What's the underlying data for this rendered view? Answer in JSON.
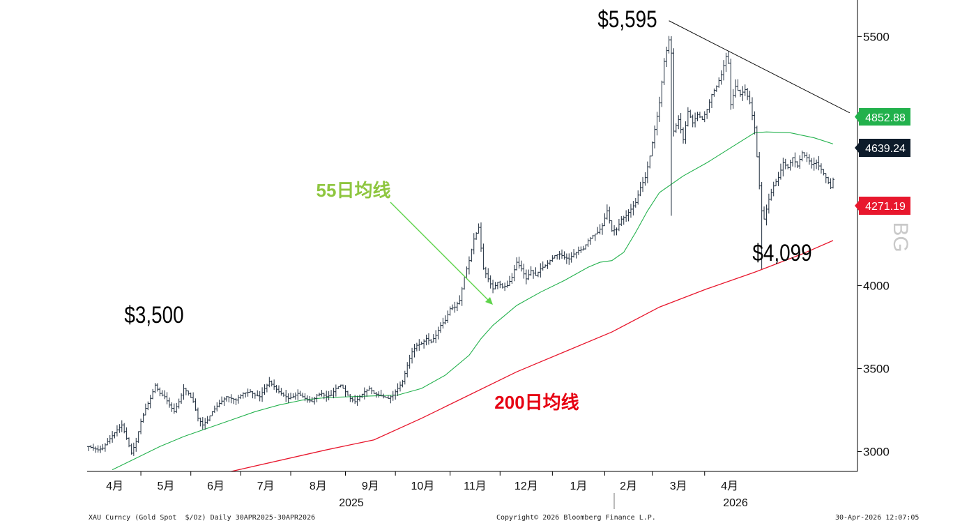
{
  "chart_data": {
    "type": "ohlc",
    "instrument": "XAU Curncy (Gold Spot  $/Oz) Daily 30APR2025-30APR2026",
    "copyright": "Copyright© 2026 Bloomberg Finance L.P.",
    "timestamp": "30-Apr-2026 12:07:05",
    "x_ticks": [
      "4月",
      "5月",
      "6月",
      "7月",
      "8月",
      "9月",
      "10月",
      "11月",
      "12月",
      "1月",
      "2月",
      "3月",
      "4月"
    ],
    "years": [
      "2025",
      "2026"
    ],
    "y_ticks": [
      "5500",
      "5000",
      "4500",
      "4000",
      "3500",
      "3000"
    ],
    "ylim": [
      2880,
      5720
    ],
    "price_path": [
      [
        0,
        3030
      ],
      [
        4,
        3010
      ],
      [
        6,
        3020
      ],
      [
        8,
        3060
      ],
      [
        12,
        3130
      ],
      [
        14,
        3160
      ],
      [
        16,
        3080
      ],
      [
        18,
        2990
      ],
      [
        20,
        3060
      ],
      [
        22,
        3180
      ],
      [
        24,
        3260
      ],
      [
        26,
        3320
      ],
      [
        28,
        3400
      ],
      [
        30,
        3350
      ],
      [
        32,
        3330
      ],
      [
        34,
        3280
      ],
      [
        36,
        3240
      ],
      [
        38,
        3300
      ],
      [
        40,
        3380
      ],
      [
        42,
        3350
      ],
      [
        44,
        3300
      ],
      [
        46,
        3200
      ],
      [
        48,
        3160
      ],
      [
        50,
        3190
      ],
      [
        52,
        3240
      ],
      [
        55,
        3290
      ],
      [
        58,
        3330
      ],
      [
        62,
        3310
      ],
      [
        65,
        3350
      ],
      [
        68,
        3360
      ],
      [
        70,
        3340
      ],
      [
        72,
        3330
      ],
      [
        74,
        3380
      ],
      [
        76,
        3420
      ],
      [
        78,
        3390
      ],
      [
        80,
        3360
      ],
      [
        82,
        3340
      ],
      [
        84,
        3320
      ],
      [
        86,
        3330
      ],
      [
        88,
        3350
      ],
      [
        90,
        3330
      ],
      [
        92,
        3310
      ],
      [
        94,
        3300
      ],
      [
        96,
        3340
      ],
      [
        98,
        3350
      ],
      [
        100,
        3330
      ],
      [
        102,
        3340
      ],
      [
        104,
        3380
      ],
      [
        106,
        3400
      ],
      [
        108,
        3360
      ],
      [
        110,
        3320
      ],
      [
        112,
        3300
      ],
      [
        114,
        3330
      ],
      [
        116,
        3360
      ],
      [
        118,
        3380
      ],
      [
        120,
        3350
      ],
      [
        122,
        3340
      ],
      [
        124,
        3330
      ],
      [
        126,
        3320
      ],
      [
        128,
        3340
      ],
      [
        130,
        3380
      ],
      [
        132,
        3420
      ],
      [
        134,
        3520
      ],
      [
        136,
        3600
      ],
      [
        138,
        3640
      ],
      [
        140,
        3650
      ],
      [
        142,
        3680
      ],
      [
        144,
        3660
      ],
      [
        146,
        3700
      ],
      [
        148,
        3760
      ],
      [
        150,
        3790
      ],
      [
        152,
        3860
      ],
      [
        154,
        3870
      ],
      [
        156,
        3910
      ],
      [
        158,
        4050
      ],
      [
        160,
        4150
      ],
      [
        162,
        4280
      ],
      [
        164,
        4350
      ],
      [
        166,
        4100
      ],
      [
        168,
        4040
      ],
      [
        170,
        3980
      ],
      [
        172,
        4020
      ],
      [
        174,
        3990
      ],
      [
        176,
        4000
      ],
      [
        178,
        4050
      ],
      [
        180,
        4140
      ],
      [
        182,
        4100
      ],
      [
        184,
        4040
      ],
      [
        186,
        4090
      ],
      [
        188,
        4060
      ],
      [
        190,
        4100
      ],
      [
        192,
        4120
      ],
      [
        194,
        4150
      ],
      [
        196,
        4180
      ],
      [
        198,
        4190
      ],
      [
        200,
        4170
      ],
      [
        202,
        4160
      ],
      [
        204,
        4190
      ],
      [
        206,
        4210
      ],
      [
        208,
        4220
      ],
      [
        210,
        4270
      ],
      [
        212,
        4300
      ],
      [
        214,
        4320
      ],
      [
        216,
        4360
      ],
      [
        218,
        4450
      ],
      [
        220,
        4330
      ],
      [
        222,
        4340
      ],
      [
        224,
        4400
      ],
      [
        226,
        4420
      ],
      [
        228,
        4460
      ],
      [
        230,
        4500
      ],
      [
        232,
        4590
      ],
      [
        234,
        4650
      ],
      [
        236,
        4780
      ],
      [
        238,
        4940
      ],
      [
        240,
        5100
      ],
      [
        242,
        5350
      ],
      [
        244,
        5480
      ],
      [
        245,
        5400
      ],
      [
        246,
        4930
      ],
      [
        248,
        5000
      ],
      [
        250,
        4880
      ],
      [
        252,
        5050
      ],
      [
        254,
        4980
      ],
      [
        256,
        5030
      ],
      [
        258,
        5000
      ],
      [
        260,
        5060
      ],
      [
        262,
        5150
      ],
      [
        264,
        5200
      ],
      [
        266,
        5270
      ],
      [
        268,
        5380
      ],
      [
        269,
        5340
      ],
      [
        270,
        5090
      ],
      [
        272,
        5200
      ],
      [
        274,
        5150
      ],
      [
        276,
        5180
      ],
      [
        278,
        5100
      ],
      [
        280,
        4950
      ],
      [
        282,
        4600
      ],
      [
        283,
        4450
      ],
      [
        284,
        4400
      ],
      [
        286,
        4520
      ],
      [
        288,
        4600
      ],
      [
        290,
        4650
      ],
      [
        292,
        4740
      ],
      [
        294,
        4710
      ],
      [
        296,
        4770
      ],
      [
        298,
        4720
      ],
      [
        300,
        4800
      ],
      [
        302,
        4770
      ],
      [
        304,
        4730
      ],
      [
        306,
        4740
      ],
      [
        308,
        4700
      ],
      [
        310,
        4650
      ],
      [
        312,
        4590
      ],
      [
        313,
        4639
      ]
    ],
    "lows": [
      [
        245,
        4420
      ],
      [
        283,
        4099
      ]
    ],
    "ma_series": [
      {
        "name": "55日均线",
        "last": 4852.88,
        "color": "#22b14c",
        "values": [
          [
            10,
            2890
          ],
          [
            20,
            2960
          ],
          [
            30,
            3030
          ],
          [
            40,
            3090
          ],
          [
            50,
            3140
          ],
          [
            60,
            3190
          ],
          [
            70,
            3240
          ],
          [
            80,
            3280
          ],
          [
            90,
            3310
          ],
          [
            100,
            3325
          ],
          [
            110,
            3330
          ],
          [
            120,
            3335
          ],
          [
            130,
            3340
          ],
          [
            140,
            3380
          ],
          [
            150,
            3460
          ],
          [
            160,
            3580
          ],
          [
            165,
            3680
          ],
          [
            170,
            3760
          ],
          [
            180,
            3880
          ],
          [
            190,
            3960
          ],
          [
            200,
            4030
          ],
          [
            210,
            4110
          ],
          [
            215,
            4140
          ],
          [
            220,
            4150
          ],
          [
            225,
            4200
          ],
          [
            230,
            4320
          ],
          [
            235,
            4450
          ],
          [
            240,
            4560
          ],
          [
            250,
            4660
          ],
          [
            260,
            4740
          ],
          [
            270,
            4830
          ],
          [
            280,
            4920
          ],
          [
            285,
            4925
          ],
          [
            295,
            4920
          ],
          [
            305,
            4890
          ],
          [
            313,
            4853
          ]
        ]
      },
      {
        "name": "200日均线",
        "last": 4271.19,
        "color": "#e8172d",
        "values": [
          [
            60,
            2880
          ],
          [
            100,
            3010
          ],
          [
            120,
            3070
          ],
          [
            140,
            3200
          ],
          [
            160,
            3340
          ],
          [
            180,
            3480
          ],
          [
            200,
            3600
          ],
          [
            220,
            3720
          ],
          [
            240,
            3870
          ],
          [
            260,
            3980
          ],
          [
            280,
            4080
          ],
          [
            300,
            4190
          ],
          [
            313,
            4271
          ]
        ]
      }
    ],
    "last_price": 4639.24,
    "last_labels": [
      "4852.88",
      "4639.24",
      "4271.19"
    ],
    "trendline": {
      "from": [
        244,
        5595
      ],
      "to": [
        320,
        5040
      ]
    },
    "annotations": [
      "$5,595",
      "$3,500",
      "$4,099",
      "55日均线",
      "200日均线"
    ],
    "colors": {
      "bars": "#1f2d3d",
      "ma55": "#22b14c",
      "ma200": "#e8172d",
      "ma55_label": "#8ec63f",
      "ma200_label": "#e60012",
      "last_price_box": "#0d1b2a",
      "trendline": "#111111"
    },
    "legend": "none",
    "grid": false,
    "watermark": "BG"
  }
}
